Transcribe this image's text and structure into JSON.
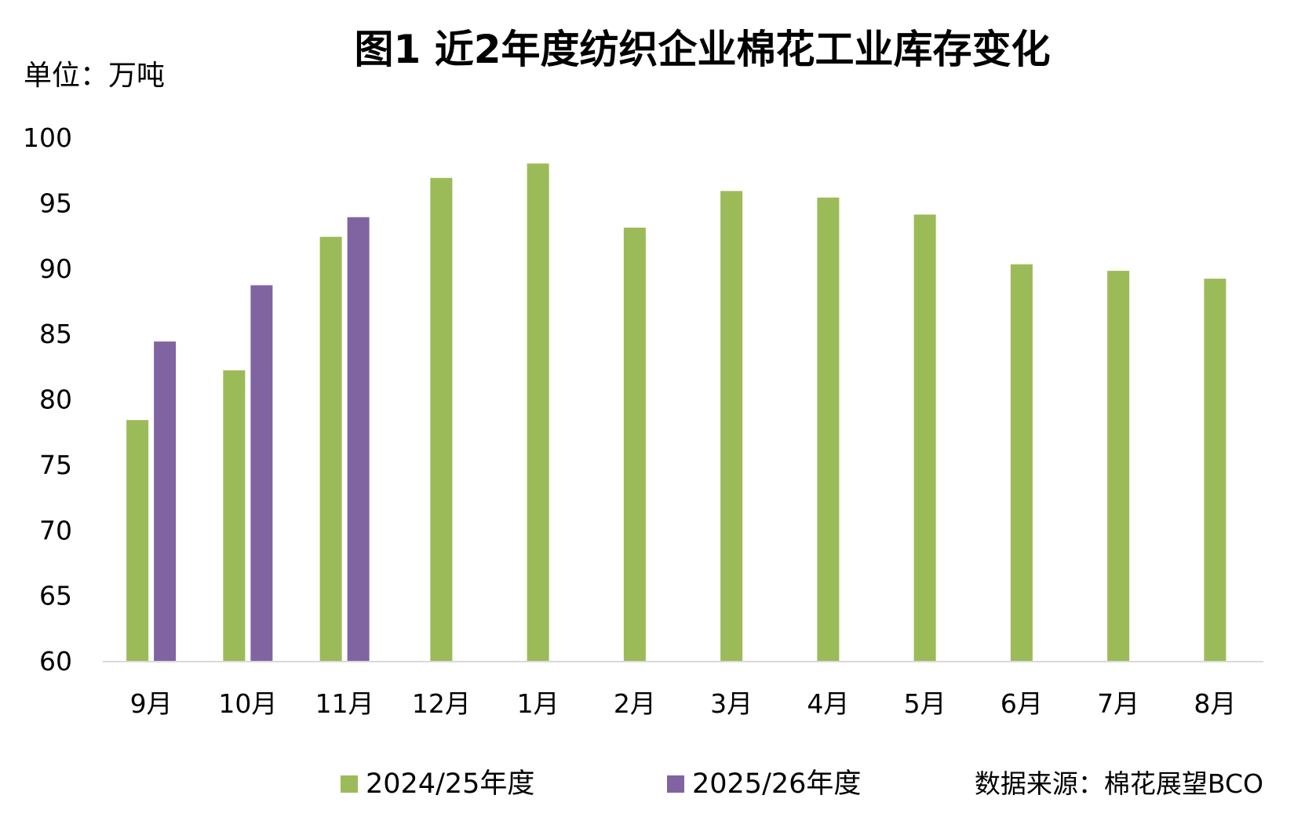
{
  "chart_data": {
    "type": "bar",
    "title": "图1 近2年度纺织企业棉花工业库存变化",
    "unit_label": "单位：万吨",
    "source": "数据来源：棉花展望BCO",
    "ylim": [
      60,
      100
    ],
    "yticks": [
      "60",
      "65",
      "70",
      "75",
      "80",
      "85",
      "90",
      "95",
      "100"
    ],
    "ytick_values": [
      60,
      65,
      70,
      75,
      80,
      85,
      90,
      95,
      100
    ],
    "categories": [
      "9月",
      "10月",
      "11月",
      "12月",
      "1月",
      "2月",
      "3月",
      "4月",
      "5月",
      "6月",
      "7月",
      "8月"
    ],
    "series": [
      {
        "name": "2024/25年度",
        "color": "#9BBB59",
        "values": [
          78.4,
          82.2,
          92.4,
          96.9,
          98.0,
          93.1,
          95.9,
          95.4,
          94.1,
          90.3,
          89.8,
          89.2
        ]
      },
      {
        "name": "2025/26年度",
        "color": "#8064A2",
        "values": [
          84.4,
          88.7,
          93.9,
          null,
          null,
          null,
          null,
          null,
          null,
          null,
          null,
          null
        ]
      }
    ],
    "grid": false,
    "legend_position": "bottom"
  }
}
